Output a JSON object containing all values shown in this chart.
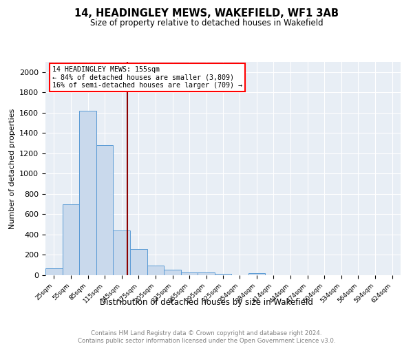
{
  "title": "14, HEADINGLEY MEWS, WAKEFIELD, WF1 3AB",
  "subtitle": "Size of property relative to detached houses in Wakefield",
  "xlabel": "Distribution of detached houses by size in Wakefield",
  "ylabel": "Number of detached properties",
  "footnote1": "Contains HM Land Registry data © Crown copyright and database right 2024.",
  "footnote2": "Contains public sector information licensed under the Open Government Licence v3.0.",
  "annotation_line1": "14 HEADINGLEY MEWS: 155sqm",
  "annotation_line2": "← 84% of detached houses are smaller (3,809)",
  "annotation_line3": "16% of semi-detached houses are larger (709) →",
  "bar_color": "#c9d9ec",
  "bar_edge_color": "#5b9bd5",
  "vline_x": 155,
  "vline_color": "#8b0000",
  "categories": [
    "25sqm",
    "55sqm",
    "85sqm",
    "115sqm",
    "145sqm",
    "175sqm",
    "205sqm",
    "235sqm",
    "265sqm",
    "295sqm",
    "325sqm",
    "354sqm",
    "384sqm",
    "414sqm",
    "444sqm",
    "474sqm",
    "504sqm",
    "534sqm",
    "564sqm",
    "594sqm",
    "624sqm"
  ],
  "bin_edges": [
    10,
    40,
    70,
    100,
    130,
    160,
    190,
    220,
    250,
    280,
    310,
    339,
    369,
    399,
    429,
    459,
    489,
    519,
    549,
    579,
    609,
    639
  ],
  "values": [
    70,
    700,
    1620,
    1280,
    440,
    255,
    95,
    55,
    30,
    25,
    15,
    0,
    20,
    0,
    0,
    0,
    0,
    0,
    0,
    0,
    0
  ],
  "ylim": [
    0,
    2100
  ],
  "plot_bg": "#e8eef5",
  "fig_bg": "white",
  "grid_color": "white",
  "yticks": [
    0,
    200,
    400,
    600,
    800,
    1000,
    1200,
    1400,
    1600,
    1800,
    2000
  ]
}
